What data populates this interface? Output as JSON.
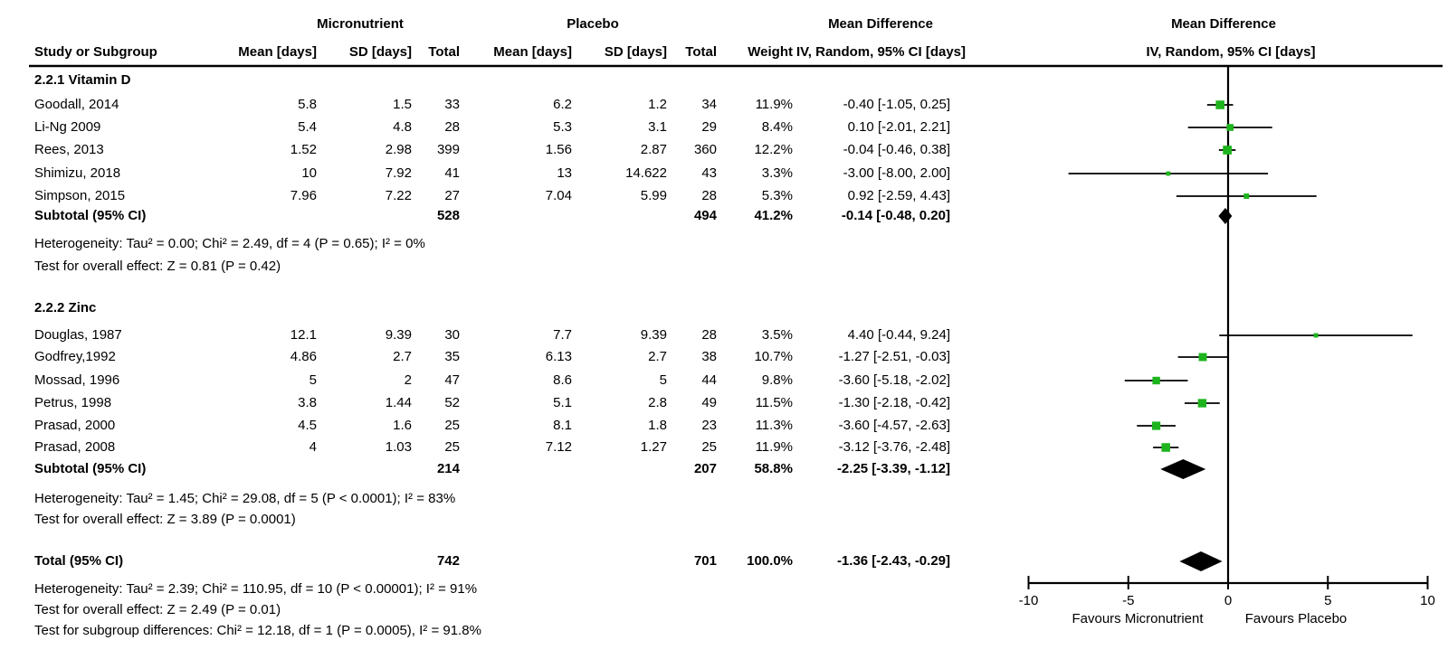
{
  "header": {
    "group_micronutrient": "Micronutrient",
    "group_placebo": "Placebo",
    "mean_difference_text_col": "Mean Difference",
    "mean_difference_plot_col": "Mean Difference",
    "study": "Study or Subgroup",
    "mean1": "Mean [days]",
    "sd1": "SD [days]",
    "total1": "Total",
    "mean2": "Mean [days]",
    "sd2": "SD [days]",
    "total2": "Total",
    "weight": "Weight",
    "ci": "IV, Random, 95% CI [days]",
    "ci_plot": "IV, Random, 95% CI [days]"
  },
  "sec1": "2.2.1 Vitamin D",
  "vit": [
    {
      "study": "Goodall, 2014",
      "mean1": "5.8",
      "sd1": "1.5",
      "total1": "33",
      "mean2": "6.2",
      "sd2": "1.2",
      "total2": "34",
      "weight": "11.9%",
      "ci": "-0.40 [-1.05, 0.25]"
    },
    {
      "study": "Li-Ng 2009",
      "mean1": "5.4",
      "sd1": "4.8",
      "total1": "28",
      "mean2": "5.3",
      "sd2": "3.1",
      "total2": "29",
      "weight": "8.4%",
      "ci": "0.10 [-2.01, 2.21]"
    },
    {
      "study": "Rees, 2013",
      "mean1": "1.52",
      "sd1": "2.98",
      "total1": "399",
      "mean2": "1.56",
      "sd2": "2.87",
      "total2": "360",
      "weight": "12.2%",
      "ci": "-0.04 [-0.46, 0.38]"
    },
    {
      "study": "Shimizu, 2018",
      "mean1": "10",
      "sd1": "7.92",
      "total1": "41",
      "mean2": "13",
      "sd2": "14.622",
      "total2": "43",
      "weight": "3.3%",
      "ci": "-3.00 [-8.00, 2.00]"
    },
    {
      "study": "Simpson, 2015",
      "mean1": "7.96",
      "sd1": "7.22",
      "total1": "27",
      "mean2": "7.04",
      "sd2": "5.99",
      "total2": "28",
      "weight": "5.3%",
      "ci": "0.92 [-2.59, 4.43]"
    }
  ],
  "vit_subtotal": {
    "study": "Subtotal (95% CI)",
    "total1": "528",
    "total2": "494",
    "weight": "41.2%",
    "ci": "-0.14 [-0.48, 0.20]"
  },
  "vit_het": "Heterogeneity: Tau² = 0.00; Chi² = 2.49, df = 4 (P = 0.65); I² = 0%",
  "vit_test": "Test for overall effect: Z = 0.81 (P = 0.42)",
  "sec2": "2.2.2 Zinc",
  "zinc": [
    {
      "study": "Douglas, 1987",
      "mean1": "12.1",
      "sd1": "9.39",
      "total1": "30",
      "mean2": "7.7",
      "sd2": "9.39",
      "total2": "28",
      "weight": "3.5%",
      "ci": "4.40 [-0.44, 9.24]"
    },
    {
      "study": "Godfrey,1992",
      "mean1": "4.86",
      "sd1": "2.7",
      "total1": "35",
      "mean2": "6.13",
      "sd2": "2.7",
      "total2": "38",
      "weight": "10.7%",
      "ci": "-1.27 [-2.51, -0.03]"
    },
    {
      "study": "Mossad, 1996",
      "mean1": "5",
      "sd1": "2",
      "total1": "47",
      "mean2": "8.6",
      "sd2": "5",
      "total2": "44",
      "weight": "9.8%",
      "ci": "-3.60 [-5.18, -2.02]"
    },
    {
      "study": "Petrus, 1998",
      "mean1": "3.8",
      "sd1": "1.44",
      "total1": "52",
      "mean2": "5.1",
      "sd2": "2.8",
      "total2": "49",
      "weight": "11.5%",
      "ci": "-1.30 [-2.18, -0.42]"
    },
    {
      "study": "Prasad, 2000",
      "mean1": "4.5",
      "sd1": "1.6",
      "total1": "25",
      "mean2": "8.1",
      "sd2": "1.8",
      "total2": "23",
      "weight": "11.3%",
      "ci": "-3.60 [-4.57, -2.63]"
    },
    {
      "study": "Prasad, 2008",
      "mean1": "4",
      "sd1": "1.03",
      "total1": "25",
      "mean2": "7.12",
      "sd2": "1.27",
      "total2": "25",
      "weight": "11.9%",
      "ci": "-3.12 [-3.76, -2.48]"
    }
  ],
  "zinc_subtotal": {
    "study": "Subtotal (95% CI)",
    "total1": "214",
    "total2": "207",
    "weight": "58.8%",
    "ci": "-2.25 [-3.39, -1.12]"
  },
  "zinc_het": "Heterogeneity: Tau² = 1.45; Chi² = 29.08, df = 5 (P < 0.0001); I² = 83%",
  "zinc_test": "Test for overall effect: Z = 3.89 (P = 0.0001)",
  "total_row": {
    "study": "Total (95% CI)",
    "total1": "742",
    "total2": "701",
    "weight": "100.0%",
    "ci": "-1.36 [-2.43, -0.29]"
  },
  "total_het": "Heterogeneity: Tau² = 2.39; Chi² = 110.95, df = 10 (P < 0.00001); I² = 91%",
  "total_test": "Test for overall effect: Z = 2.49 (P = 0.01)",
  "subgroup_test": "Test for subgroup differences: Chi² = 12.18, df = 1 (P = 0.0005), I² = 91.8%",
  "chart_data": {
    "type": "forest",
    "effect_measure": "Mean Difference, IV, Random, 95% CI [days]",
    "x_axis": {
      "min": -10,
      "max": 10,
      "ticks": [
        -10,
        -5,
        0,
        5,
        10
      ],
      "label_left": "Favours Micronutrient",
      "label_right": "Favours Placebo"
    },
    "marker_color": "#1db41d",
    "line_color": "#000000",
    "studies": [
      {
        "group": "2.2.1 Vitamin D",
        "name": "Goodall, 2014",
        "md": -0.4,
        "lo": -1.05,
        "hi": 0.25,
        "weight": 11.9
      },
      {
        "group": "2.2.1 Vitamin D",
        "name": "Li-Ng 2009",
        "md": 0.1,
        "lo": -2.01,
        "hi": 2.21,
        "weight": 8.4
      },
      {
        "group": "2.2.1 Vitamin D",
        "name": "Rees, 2013",
        "md": -0.04,
        "lo": -0.46,
        "hi": 0.38,
        "weight": 12.2
      },
      {
        "group": "2.2.1 Vitamin D",
        "name": "Shimizu, 2018",
        "md": -3.0,
        "lo": -8.0,
        "hi": 2.0,
        "weight": 3.3
      },
      {
        "group": "2.2.1 Vitamin D",
        "name": "Simpson, 2015",
        "md": 0.92,
        "lo": -2.59,
        "hi": 4.43,
        "weight": 5.3
      },
      {
        "group": "2.2.2 Zinc",
        "name": "Douglas, 1987",
        "md": 4.4,
        "lo": -0.44,
        "hi": 9.24,
        "weight": 3.5
      },
      {
        "group": "2.2.2 Zinc",
        "name": "Godfrey,1992",
        "md": -1.27,
        "lo": -2.51,
        "hi": -0.03,
        "weight": 10.7
      },
      {
        "group": "2.2.2 Zinc",
        "name": "Mossad, 1996",
        "md": -3.6,
        "lo": -5.18,
        "hi": -2.02,
        "weight": 9.8
      },
      {
        "group": "2.2.2 Zinc",
        "name": "Petrus, 1998",
        "md": -1.3,
        "lo": -2.18,
        "hi": -0.42,
        "weight": 11.5
      },
      {
        "group": "2.2.2 Zinc",
        "name": "Prasad, 2000",
        "md": -3.6,
        "lo": -4.57,
        "hi": -2.63,
        "weight": 11.3
      },
      {
        "group": "2.2.2 Zinc",
        "name": "Prasad, 2008",
        "md": -3.12,
        "lo": -3.76,
        "hi": -2.48,
        "weight": 11.9
      }
    ],
    "diamonds": [
      {
        "name": "Subtotal Vitamin D",
        "md": -0.14,
        "lo": -0.48,
        "hi": 0.2
      },
      {
        "name": "Subtotal Zinc",
        "md": -2.25,
        "lo": -3.39,
        "hi": -1.12
      },
      {
        "name": "Total",
        "md": -1.36,
        "lo": -2.43,
        "hi": -0.29
      }
    ]
  }
}
